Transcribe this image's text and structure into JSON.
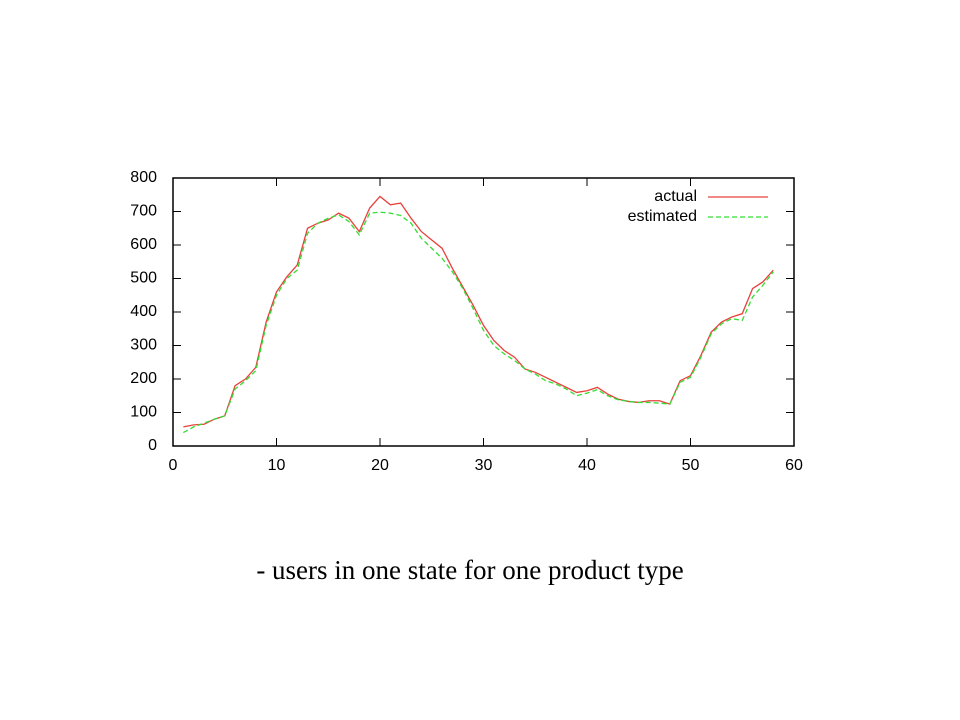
{
  "chart_data": {
    "type": "line",
    "caption": "- users in one state for one product type",
    "x": [
      1,
      2,
      3,
      4,
      5,
      6,
      7,
      8,
      9,
      10,
      11,
      12,
      13,
      14,
      15,
      16,
      17,
      18,
      19,
      20,
      21,
      22,
      23,
      24,
      25,
      26,
      27,
      28,
      29,
      30,
      31,
      32,
      33,
      34,
      35,
      36,
      37,
      38,
      39,
      40,
      41,
      42,
      43,
      44,
      45,
      46,
      47,
      48,
      49,
      50,
      51,
      52,
      53,
      54,
      55,
      56,
      57,
      58
    ],
    "series": [
      {
        "name": "actual",
        "color": "#e8413c",
        "dash": false,
        "values": [
          57,
          63,
          65,
          80,
          90,
          180,
          200,
          235,
          370,
          460,
          505,
          540,
          650,
          665,
          675,
          695,
          680,
          640,
          710,
          745,
          720,
          725,
          680,
          640,
          615,
          590,
          530,
          475,
          420,
          360,
          315,
          285,
          265,
          230,
          220,
          205,
          190,
          175,
          160,
          165,
          175,
          155,
          140,
          133,
          130,
          135,
          135,
          125,
          195,
          210,
          270,
          340,
          370,
          385,
          395,
          470,
          490,
          525
        ]
      },
      {
        "name": "estimated",
        "color": "#33dd33",
        "dash": true,
        "values": [
          40,
          57,
          68,
          80,
          90,
          170,
          195,
          225,
          360,
          450,
          500,
          525,
          635,
          665,
          680,
          690,
          670,
          630,
          695,
          698,
          695,
          688,
          665,
          620,
          590,
          560,
          520,
          470,
          410,
          345,
          300,
          275,
          255,
          230,
          215,
          195,
          185,
          170,
          150,
          158,
          168,
          150,
          138,
          133,
          130,
          130,
          128,
          125,
          190,
          205,
          265,
          335,
          365,
          380,
          375,
          445,
          480,
          520
        ]
      }
    ],
    "xlim": [
      0,
      60
    ],
    "xticks": [
      0,
      10,
      20,
      30,
      40,
      50,
      60
    ],
    "ylim": [
      0,
      800
    ],
    "yticks": [
      0,
      100,
      200,
      300,
      400,
      500,
      600,
      700,
      800
    ],
    "legend": "top-right"
  }
}
